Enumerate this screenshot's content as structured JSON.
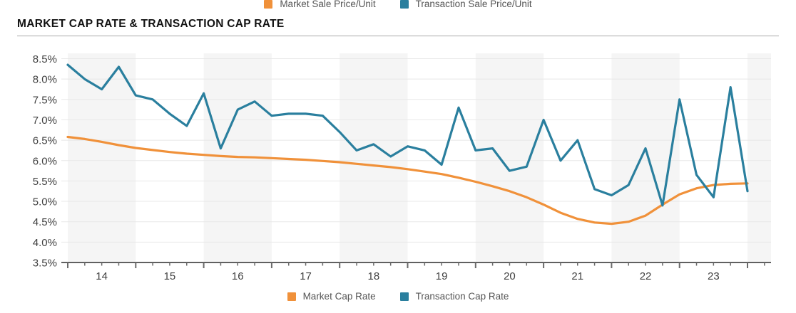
{
  "top_legend": {
    "items": [
      {
        "label": "Market Sale Price/Unit",
        "color": "#F0913A"
      },
      {
        "label": "Transaction Sale Price/Unit",
        "color": "#2A7F9E"
      }
    ]
  },
  "header": {
    "title": "MARKET CAP RATE & TRANSACTION CAP RATE"
  },
  "bottom_legend": {
    "items": [
      {
        "label": "Market Cap Rate",
        "color": "#F0913A"
      },
      {
        "label": "Transaction Cap Rate",
        "color": "#2A7F9E"
      }
    ]
  },
  "chart_data": {
    "type": "line",
    "title": "MARKET CAP RATE & TRANSACTION CAP RATE",
    "x_unit": "quarterly",
    "x_start": "2014-Q1",
    "x_step_years": 0.25,
    "x_tick_labels": [
      "14",
      "15",
      "16",
      "17",
      "18",
      "19",
      "20",
      "21",
      "22",
      "23"
    ],
    "y_tick_labels": [
      "8.5%",
      "8.0%",
      "7.5%",
      "7.0%",
      "6.5%",
      "6.0%",
      "5.5%",
      "5.0%",
      "4.5%",
      "4.0%",
      "3.5%"
    ],
    "ylim": [
      3.5,
      8.5
    ],
    "grid": "horizontal",
    "background_bands": "alternating-years",
    "legend_position": "bottom",
    "series": [
      {
        "name": "Market Cap Rate",
        "color": "#F0913A",
        "values": [
          6.58,
          6.53,
          6.46,
          6.38,
          6.31,
          6.26,
          6.21,
          6.17,
          6.14,
          6.11,
          6.09,
          6.08,
          6.06,
          6.04,
          6.02,
          5.99,
          5.96,
          5.92,
          5.88,
          5.84,
          5.79,
          5.73,
          5.67,
          5.58,
          5.48,
          5.37,
          5.25,
          5.1,
          4.92,
          4.72,
          4.57,
          4.48,
          4.45,
          4.5,
          4.65,
          4.92,
          5.17,
          5.32,
          5.4,
          5.43,
          5.44
        ]
      },
      {
        "name": "Transaction Cap Rate",
        "color": "#2A7F9E",
        "values": [
          8.35,
          8.0,
          7.75,
          8.3,
          7.6,
          7.5,
          7.15,
          6.85,
          7.65,
          6.3,
          7.25,
          7.45,
          7.1,
          7.15,
          7.15,
          7.1,
          6.7,
          6.25,
          6.4,
          6.1,
          6.35,
          6.25,
          5.9,
          7.3,
          6.25,
          6.3,
          5.75,
          5.85,
          7.0,
          6.0,
          6.5,
          5.3,
          5.15,
          5.4,
          6.3,
          4.9,
          7.5,
          5.65,
          5.1,
          7.8,
          5.25
        ]
      }
    ]
  }
}
